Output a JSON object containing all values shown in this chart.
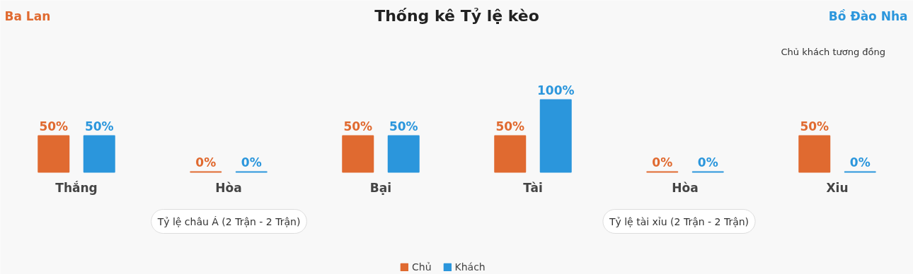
{
  "chart_data": {
    "type": "bar",
    "title": "Thống kê Tỷ lệ kèo",
    "categories": [
      "Thắng",
      "Hòa",
      "Bại",
      "Tài",
      "Hòa",
      "Xiu"
    ],
    "series": [
      {
        "name": "Chủ",
        "color": "#e06a30",
        "values": [
          50,
          0,
          50,
          50,
          0,
          50
        ],
        "value_labels": [
          "50%",
          "0%",
          "50%",
          "50%",
          "0%",
          "50%"
        ]
      },
      {
        "name": "Khách",
        "color": "#2b96dc",
        "values": [
          50,
          0,
          50,
          100,
          0,
          0
        ],
        "value_labels": [
          "50%",
          "0%",
          "50%",
          "100%",
          "0%",
          "0%"
        ]
      }
    ],
    "annotations": [
      "Ba Lan",
      "Bồ Đào Nha",
      "Chủ khách tương đồng",
      "Tỷ lệ châu Á (2 Trận - 2 Trận)",
      "Tỷ lệ tài xỉu (2 Trận - 2 Trận)"
    ],
    "legend": "bottom"
  }
}
